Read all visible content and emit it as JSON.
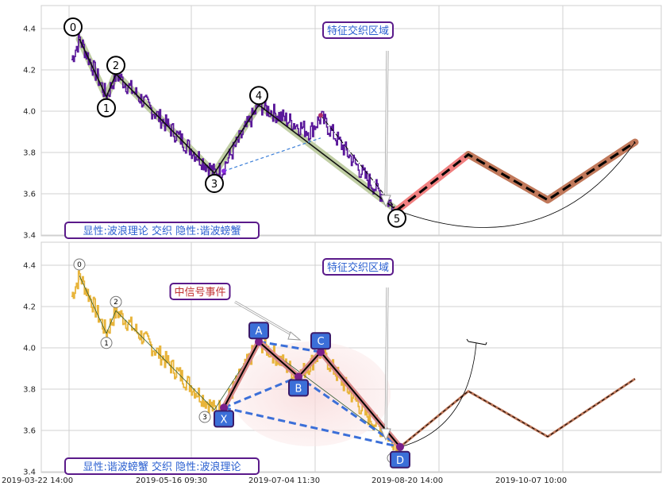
{
  "chart_data": [
    {
      "type": "line",
      "panel": "top",
      "ylim": [
        3.4,
        4.5
      ],
      "yticks": [
        "3.4",
        "3.6",
        "3.8",
        "4.0",
        "4.2",
        "4.4"
      ],
      "annotations": {
        "top_label": "特征交织区域",
        "bottom_label": "显性:波浪理论 交织 隐性:谐波螃蟹"
      },
      "wave_points": [
        {
          "label": "0",
          "x": 5,
          "y": 4.35
        },
        {
          "label": "1",
          "x": 22,
          "y": 4.07
        },
        {
          "label": "2",
          "x": 28,
          "y": 4.18
        },
        {
          "label": "3",
          "x": 90,
          "y": 3.7
        },
        {
          "label": "4",
          "x": 118,
          "y": 4.03
        },
        {
          "label": "5",
          "x": 205,
          "y": 3.52
        }
      ],
      "projection": [
        {
          "x": 205,
          "y": 3.52
        },
        {
          "x": 250,
          "y": 3.79
        },
        {
          "x": 300,
          "y": 3.57
        },
        {
          "x": 355,
          "y": 3.85
        }
      ]
    },
    {
      "type": "line",
      "panel": "bottom",
      "ylim": [
        3.4,
        4.5
      ],
      "yticks": [
        "3.4",
        "3.6",
        "3.8",
        "4.0",
        "4.2",
        "4.4"
      ],
      "xticks": [
        "2019-03-22 14:00",
        "2019-05-16 09:30",
        "2019-07-04 11:30",
        "2019-08-20 14:00",
        "2019-10-07 10:00"
      ],
      "annotations": {
        "top_label": "特征交织区域",
        "signal_label": "中信号事件",
        "bottom_label": "显性:谐波螃蟹 交织 隐性:波浪理论"
      },
      "wave_points": [
        {
          "label": "0",
          "x": 5,
          "y": 4.35
        },
        {
          "label": "1",
          "x": 22,
          "y": 4.07
        },
        {
          "label": "2",
          "x": 28,
          "y": 4.18
        },
        {
          "label": "3",
          "x": 90,
          "y": 3.7
        }
      ],
      "harmonic_points": [
        {
          "label": "X",
          "x": 96,
          "y": 3.71
        },
        {
          "label": "A",
          "x": 118,
          "y": 4.03
        },
        {
          "label": "B",
          "x": 143,
          "y": 3.86
        },
        {
          "label": "C",
          "x": 157,
          "y": 3.98
        },
        {
          "label": "D",
          "x": 207,
          "y": 3.52
        }
      ],
      "projection": [
        {
          "x": 207,
          "y": 3.52
        },
        {
          "x": 250,
          "y": 3.79
        },
        {
          "x": 300,
          "y": 3.57
        },
        {
          "x": 355,
          "y": 3.85
        }
      ]
    }
  ],
  "colors": {
    "price_top": "#5a189a",
    "price_bottom": "#e8b43a",
    "wave_band": "#b9c99a",
    "projection_red": "#f08080",
    "projection_brown": "#c0785a",
    "harmonic_marker": "#3b6fd8",
    "label_border": "#5a1a8a",
    "label_text_blue": "#2a5fd0",
    "label_text_red": "#c03030"
  }
}
